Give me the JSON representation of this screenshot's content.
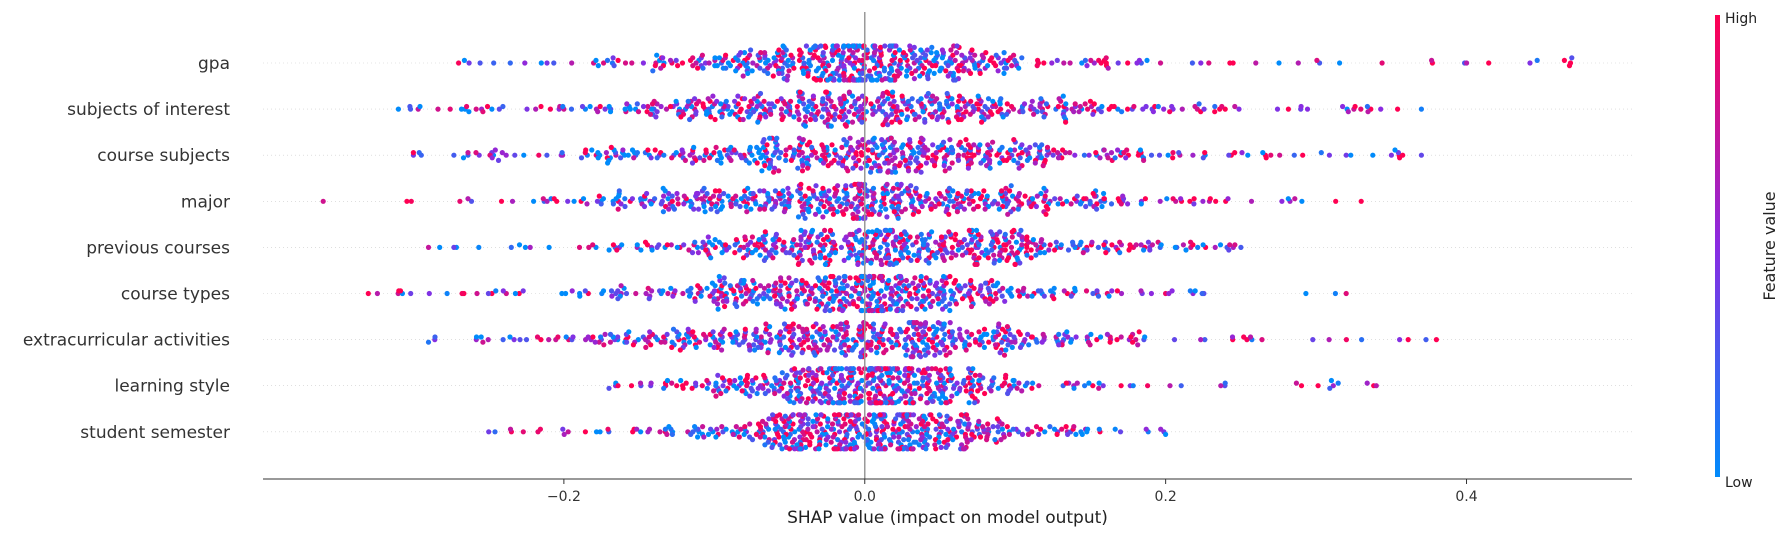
{
  "chart_data": {
    "type": "scatter",
    "subtype": "shap-beeswarm",
    "title": "",
    "xlabel": "SHAP value (impact on model output)",
    "ylabel": "",
    "xlim": [
      -0.4,
      0.51
    ],
    "xticks": [
      -0.2,
      0.0,
      0.2,
      0.4
    ],
    "xtick_labels": [
      "−0.2",
      "0.0",
      "0.2",
      "0.4"
    ],
    "colorbar": {
      "title": "Feature value",
      "high_label": "High",
      "low_label": "Low",
      "low_color": "#008bfb",
      "high_color": "#ff0052"
    },
    "features": [
      {
        "name": "gpa",
        "min": -0.27,
        "max": 0.47,
        "q1": -0.05,
        "q3": 0.04
      },
      {
        "name": "subjects of interest",
        "min": -0.31,
        "max": 0.37,
        "q1": -0.07,
        "q3": 0.07
      },
      {
        "name": "course subjects",
        "min": -0.3,
        "max": 0.37,
        "q1": -0.06,
        "q3": 0.07
      },
      {
        "name": "major",
        "min": -0.36,
        "max": 0.33,
        "q1": -0.06,
        "q3": 0.06
      },
      {
        "name": "previous courses",
        "min": -0.29,
        "max": 0.25,
        "q1": -0.04,
        "q3": 0.07
      },
      {
        "name": "course types",
        "min": -0.33,
        "max": 0.32,
        "q1": -0.05,
        "q3": 0.05
      },
      {
        "name": "extracurricular activities",
        "min": -0.29,
        "max": 0.38,
        "q1": -0.06,
        "q3": 0.06
      },
      {
        "name": "learning style",
        "min": -0.17,
        "max": 0.34,
        "q1": -0.03,
        "q3": 0.04
      },
      {
        "name": "student semester",
        "min": -0.25,
        "max": 0.2,
        "q1": -0.03,
        "q3": 0.04
      }
    ]
  }
}
